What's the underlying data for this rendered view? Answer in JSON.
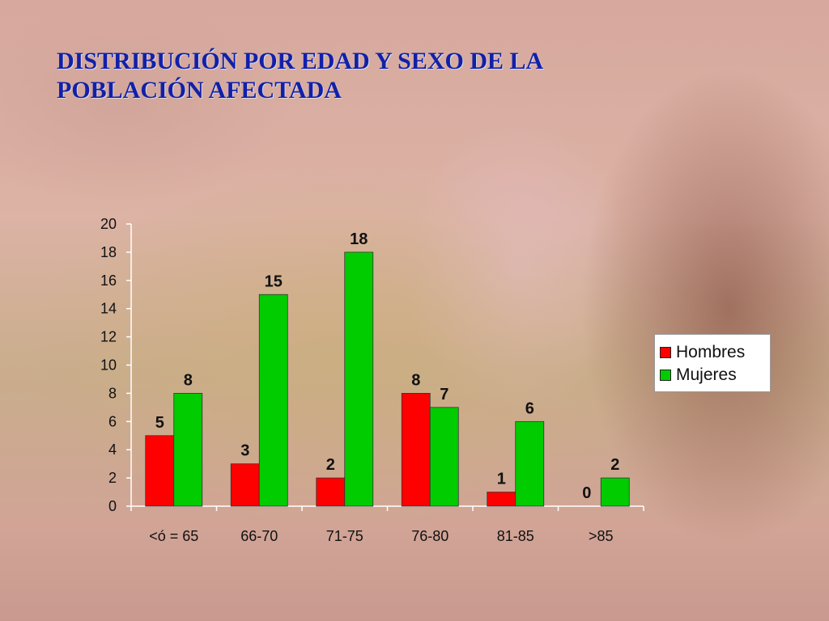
{
  "slide": {
    "title_line1": "DISTRIBUCIÓN POR EDAD Y SEXO DE LA",
    "title_line2": "POBLACIÓN AFECTADA"
  },
  "chart_data": {
    "type": "bar",
    "categories": [
      "<ó = 65",
      "66-70",
      "71-75",
      "76-80",
      "81-85",
      ">85"
    ],
    "series": [
      {
        "name": "Hombres",
        "color": "#ff0000",
        "values": [
          5,
          3,
          2,
          8,
          1,
          0
        ]
      },
      {
        "name": "Mujeres",
        "color": "#00cc00",
        "values": [
          8,
          15,
          18,
          7,
          6,
          2
        ]
      }
    ],
    "ylim": [
      0,
      20
    ],
    "yticks": [
      0,
      2,
      4,
      6,
      8,
      10,
      12,
      14,
      16,
      18,
      20
    ],
    "data_labels": true,
    "grid": false,
    "legend_position": "right"
  }
}
